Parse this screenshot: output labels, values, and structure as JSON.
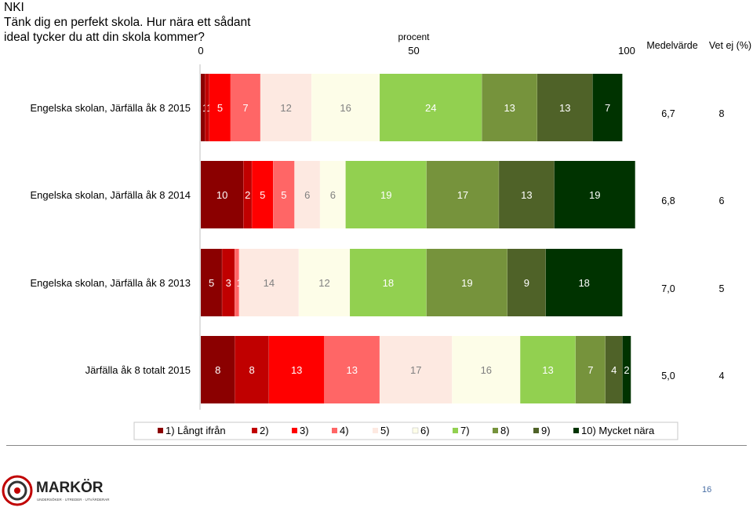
{
  "header": {
    "code": "NKI",
    "question_line1": "Tänk dig en perfekt skola. Hur nära ett sådant",
    "question_line2": "ideal tycker du att din skola kommer?"
  },
  "chart_data": {
    "type": "bar",
    "orientation": "horizontal",
    "stacked": true,
    "axis": {
      "label": "procent",
      "ticks": [
        "0",
        "50",
        "100"
      ],
      "range": [
        0,
        100
      ]
    },
    "column_headers": {
      "mean": "Medelvärde",
      "no_answer": "Vet ej (%)"
    },
    "categories": [
      {
        "label": "Engelska skolan, Järfälla åk 8  2015",
        "values": [
          1,
          1,
          5,
          7,
          12,
          16,
          24,
          13,
          13,
          7
        ],
        "value_labels": [
          "1",
          "1",
          "5",
          "7",
          "12",
          "16",
          "24",
          "13",
          "13",
          "7"
        ],
        "mean": "6,7",
        "no_answer": "8"
      },
      {
        "label": "Engelska skolan, Järfälla åk 8  2014",
        "values": [
          10,
          2,
          5,
          5,
          6,
          6,
          19,
          17,
          13,
          19
        ],
        "value_labels": [
          "10",
          "2",
          "5",
          "5",
          "6",
          "6",
          "19",
          "17",
          "13",
          "19"
        ],
        "mean": "6,8",
        "no_answer": "6"
      },
      {
        "label": "Engelska skolan, Järfälla åk 8  2013",
        "values": [
          5,
          3,
          0,
          1,
          14,
          12,
          18,
          19,
          9,
          18
        ],
        "value_labels": [
          "5",
          "3",
          "0",
          "1",
          "14",
          "12",
          "18",
          "19",
          "9",
          "18"
        ],
        "mean": "7,0",
        "no_answer": "5"
      },
      {
        "label": "Järfälla åk 8 totalt 2015",
        "values": [
          8,
          8,
          13,
          13,
          17,
          16,
          13,
          7,
          4,
          2
        ],
        "value_labels": [
          "8",
          "8",
          "13",
          "13",
          "17",
          "16",
          "13",
          "7",
          "4",
          "2"
        ],
        "mean": "5,0",
        "no_answer": "4"
      }
    ],
    "series": [
      {
        "name": "1) Långt ifrån",
        "color": "#8b0000"
      },
      {
        "name": "2)",
        "color": "#c00000"
      },
      {
        "name": "3)",
        "color": "#ff0000"
      },
      {
        "name": "4)",
        "color": "#ff6666"
      },
      {
        "name": "5)",
        "color": "#fde9e1"
      },
      {
        "name": "6)",
        "color": "#fdfde8"
      },
      {
        "name": "7)",
        "color": "#92d050"
      },
      {
        "name": "8)",
        "color": "#76933c"
      },
      {
        "name": "9)",
        "color": "#4f6228"
      },
      {
        "name": "10) Mycket nära",
        "color": "#003300"
      }
    ],
    "label_colors": [
      "#ffffff",
      "#ffffff",
      "#ffffff",
      "#ffffff",
      "#808080",
      "#808080",
      "#ffffff",
      "#ffffff",
      "#ffffff",
      "#ffffff"
    ],
    "legend": "bottom"
  },
  "footer": {
    "logo_text": "MARKÖR",
    "logo_tagline": "UNDERSÖKER · UTREDER · UTVÄRDERAR",
    "page_number": "16"
  }
}
